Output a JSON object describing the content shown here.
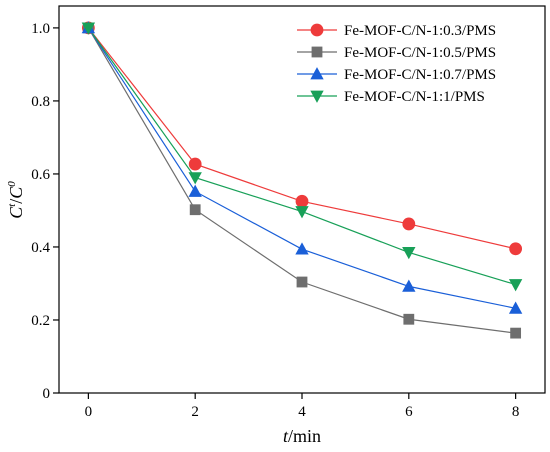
{
  "chart_data": {
    "type": "line",
    "x": [
      0,
      2,
      4,
      6,
      8
    ],
    "xlim": [
      -0.55,
      8.55
    ],
    "ylim": [
      0,
      1.06
    ],
    "xticks": [
      "0",
      "2",
      "4",
      "6",
      "8"
    ],
    "yticks": [
      "0",
      "0.2",
      "0.4",
      "0.6",
      "0.8",
      "1.0"
    ],
    "xlabel": {
      "italic": "t",
      "rest": "/min"
    },
    "ylabel": {
      "num": "C",
      "num_sup": "t",
      "den": "C",
      "den_sup": "0"
    },
    "grid": false,
    "legend_position": "top-right",
    "series": [
      {
        "name": "Fe-MOF-C/N-1:0.3/PMS",
        "color": "#ee3b3b",
        "marker": "circle",
        "values": [
          1.0,
          0.627,
          0.525,
          0.463,
          0.395
        ]
      },
      {
        "name": "Fe-MOF-C/N-1:0.5/PMS",
        "color": "#6e6e6e",
        "marker": "square",
        "values": [
          1.0,
          0.502,
          0.304,
          0.202,
          0.164
        ]
      },
      {
        "name": "Fe-MOF-C/N-1:0.7/PMS",
        "color": "#1a5fd8",
        "marker": "triangle-up",
        "values": [
          1.0,
          0.552,
          0.394,
          0.292,
          0.232
        ]
      },
      {
        "name": "Fe-MOF-C/N-1:1/PMS",
        "color": "#18a058",
        "marker": "triangle-down",
        "values": [
          1.0,
          0.59,
          0.497,
          0.385,
          0.297
        ]
      }
    ]
  }
}
